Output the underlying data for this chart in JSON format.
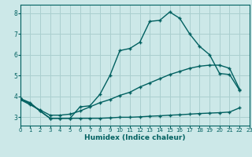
{
  "xlabel": "Humidex (Indice chaleur)",
  "bg_color": "#cce8e8",
  "grid_color": "#aacfcf",
  "line_color": "#006060",
  "line1_x": [
    0,
    1,
    2,
    3,
    4,
    5,
    6,
    7,
    8,
    9,
    10,
    11,
    12,
    13,
    14,
    15,
    16,
    17,
    18,
    19,
    20,
    21,
    22
  ],
  "line1_y": [
    3.9,
    3.7,
    3.3,
    2.95,
    2.95,
    2.95,
    3.5,
    3.55,
    4.1,
    5.0,
    6.2,
    6.3,
    6.6,
    7.6,
    7.65,
    8.05,
    7.75,
    7.0,
    6.4,
    6.0,
    5.1,
    5.05,
    4.3
  ],
  "line2_x": [
    0,
    1,
    2,
    3,
    4,
    5,
    6,
    7,
    8,
    9,
    10,
    11,
    12,
    13,
    14,
    15,
    16,
    17,
    18,
    19,
    20,
    21,
    22
  ],
  "line2_y": [
    3.85,
    3.6,
    3.35,
    3.1,
    3.1,
    3.15,
    3.3,
    3.5,
    3.7,
    3.85,
    4.05,
    4.2,
    4.45,
    4.65,
    4.85,
    5.05,
    5.2,
    5.35,
    5.45,
    5.5,
    5.5,
    5.35,
    4.35
  ],
  "line3_x": [
    0,
    1,
    2,
    3,
    4,
    5,
    6,
    7,
    8,
    9,
    10,
    11,
    12,
    13,
    14,
    15,
    16,
    17,
    18,
    19,
    20,
    21,
    22
  ],
  "line3_y": [
    3.9,
    3.65,
    3.3,
    2.95,
    2.95,
    2.95,
    2.95,
    2.95,
    2.95,
    2.97,
    3.0,
    3.0,
    3.02,
    3.05,
    3.07,
    3.1,
    3.12,
    3.15,
    3.18,
    3.2,
    3.22,
    3.25,
    3.45
  ],
  "xlim": [
    0,
    23
  ],
  "ylim": [
    2.6,
    8.4
  ],
  "yticks": [
    3,
    4,
    5,
    6,
    7,
    8
  ],
  "xticks": [
    0,
    1,
    2,
    3,
    4,
    5,
    6,
    7,
    8,
    9,
    10,
    11,
    12,
    13,
    14,
    15,
    16,
    17,
    18,
    19,
    20,
    21,
    22,
    23
  ]
}
